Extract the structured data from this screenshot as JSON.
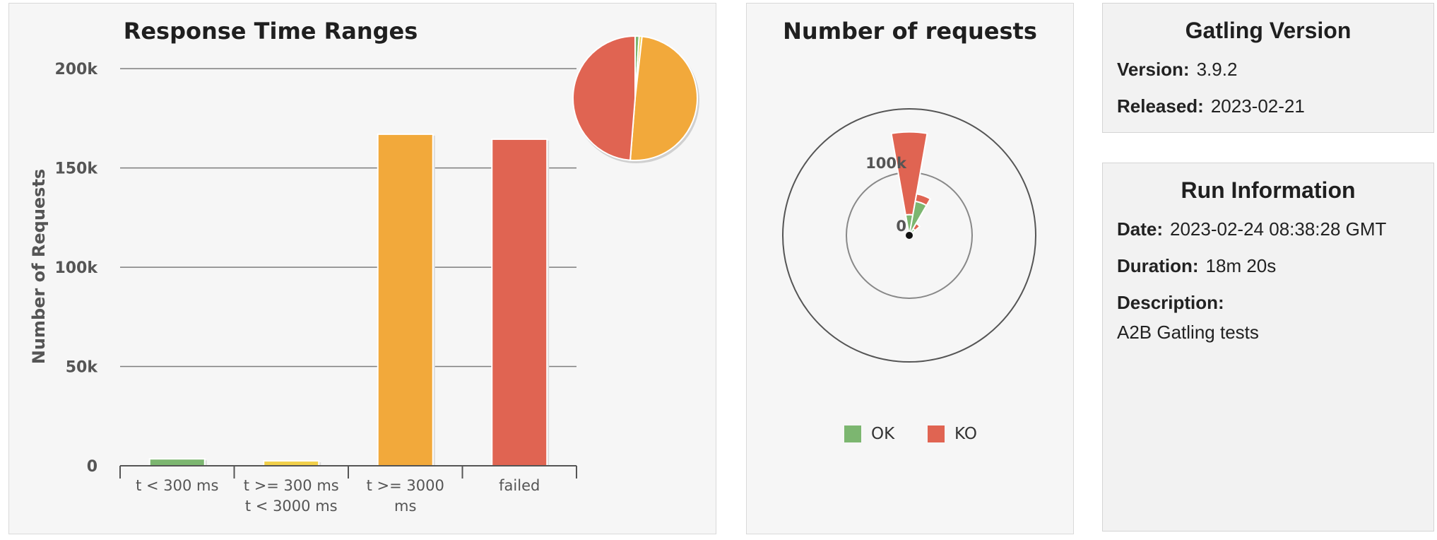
{
  "colors": {
    "ok": "#7cb670",
    "ko": "#e06452",
    "yellow": "#f2d04a",
    "orange": "#f2a93b",
    "grid": "#7d7d7d"
  },
  "chart_data": [
    {
      "type": "bar",
      "title": "Response Time Ranges",
      "ylabel": "Number of Requests",
      "ylim": [
        0,
        220000
      ],
      "y_ticks": [
        "0",
        "50k",
        "100k",
        "150k",
        "200k"
      ],
      "y_tick_values": [
        0,
        50000,
        100000,
        150000,
        200000
      ],
      "categories": [
        [
          "t < 300 ms"
        ],
        [
          "t >= 300 ms",
          "t < 3000 ms"
        ],
        [
          "t >= 3000",
          "ms"
        ],
        [
          "failed"
        ]
      ],
      "values": [
        3500,
        2500,
        167000,
        164500
      ],
      "bar_colors": [
        "#7cb670",
        "#f2d04a",
        "#f2a93b",
        "#e06452"
      ],
      "inset_pie": {
        "values": [
          3500,
          2500,
          167000,
          164500
        ],
        "colors": [
          "#7cb670",
          "#f2d04a",
          "#f2a93b",
          "#e06452"
        ]
      }
    },
    {
      "type": "polar-stacked-bar",
      "title": "Number of requests",
      "radial_ticks": [
        "0",
        "100k"
      ],
      "series": [
        {
          "name": "OK",
          "values": [
            33000,
            55000,
            12000
          ]
        },
        {
          "name": "KO",
          "values": [
            131500,
            12000,
            10000
          ]
        }
      ],
      "legend": [
        "OK",
        "KO"
      ],
      "legend_position": "bottom"
    }
  ],
  "gatling": {
    "title": "Gatling Version",
    "version_label": "Version:",
    "version_value": "3.9.2",
    "released_label": "Released:",
    "released_value": "2023-02-21"
  },
  "run": {
    "title": "Run Information",
    "date_label": "Date:",
    "date_value": "2023-02-24 08:38:28 GMT",
    "duration_label": "Duration:",
    "duration_value": "18m 20s",
    "description_label": "Description:",
    "description_value": "A2B Gatling tests"
  }
}
